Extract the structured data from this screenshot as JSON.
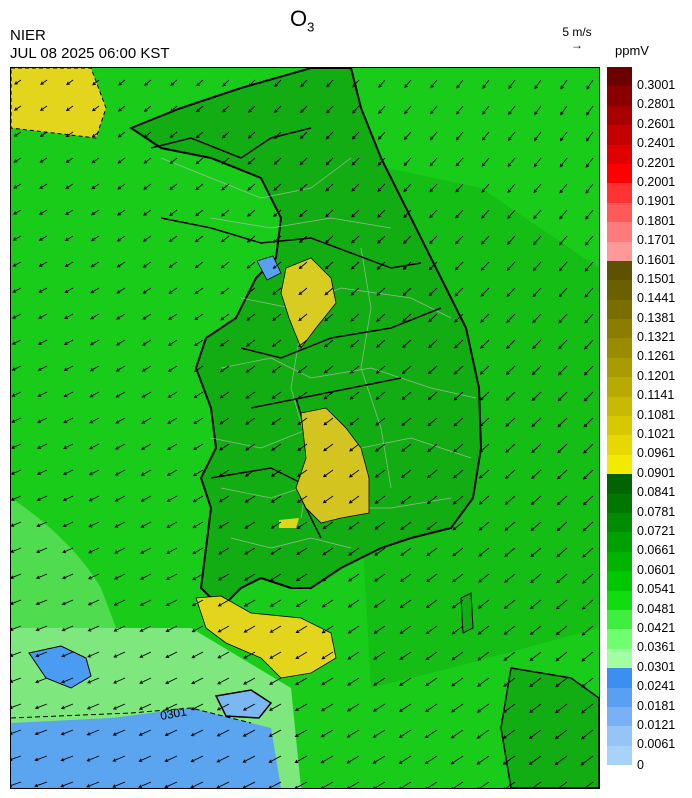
{
  "header": {
    "title_main": "O",
    "title_sub": "3",
    "agency": "NIER",
    "datetime": "JUL 08 2025 06:00 KST",
    "wind_reference": "5 m/s",
    "wind_reference_arrow": "→",
    "unit": "ppmV"
  },
  "map": {
    "contour_label": "0301",
    "background_color": "#11c911",
    "land_color": "#12b012",
    "high_ozone_color": "#e2d51c",
    "low_ozone_color": "#4a9cf2",
    "mid_low_color": "#7ee87e"
  },
  "legend": [
    {
      "label": "0.3001",
      "color": "#6b0000"
    },
    {
      "label": "0.2801",
      "color": "#8a0000"
    },
    {
      "label": "0.2601",
      "color": "#a80000"
    },
    {
      "label": "0.2401",
      "color": "#c40000"
    },
    {
      "label": "0.2201",
      "color": "#e00000"
    },
    {
      "label": "0.2001",
      "color": "#ff0000"
    },
    {
      "label": "0.1901",
      "color": "#ff3333"
    },
    {
      "label": "0.1801",
      "color": "#ff5a5a"
    },
    {
      "label": "0.1701",
      "color": "#ff7a7a"
    },
    {
      "label": "0.1601",
      "color": "#ff9898"
    },
    {
      "label": "0.1501",
      "color": "#5c5200"
    },
    {
      "label": "0.1441",
      "color": "#6b6000"
    },
    {
      "label": "0.1381",
      "color": "#7a6e00"
    },
    {
      "label": "0.1321",
      "color": "#8a7d00"
    },
    {
      "label": "0.1261",
      "color": "#9a8c00"
    },
    {
      "label": "0.1201",
      "color": "#aa9b00"
    },
    {
      "label": "0.1141",
      "color": "#b9aa00"
    },
    {
      "label": "0.1081",
      "color": "#c8ba00"
    },
    {
      "label": "0.1021",
      "color": "#d6c900"
    },
    {
      "label": "0.0961",
      "color": "#e6d800"
    },
    {
      "label": "0.0901",
      "color": "#f2ea00"
    },
    {
      "label": "0.0841",
      "color": "#006400"
    },
    {
      "label": "0.0781",
      "color": "#007800"
    },
    {
      "label": "0.0721",
      "color": "#008c00"
    },
    {
      "label": "0.0661",
      "color": "#00a000"
    },
    {
      "label": "0.0601",
      "color": "#00b400"
    },
    {
      "label": "0.0541",
      "color": "#00c800"
    },
    {
      "label": "0.0481",
      "color": "#10dc10"
    },
    {
      "label": "0.0421",
      "color": "#40ee40"
    },
    {
      "label": "0.0361",
      "color": "#70ff70"
    },
    {
      "label": "0.0301",
      "color": "#a0ffa0"
    },
    {
      "label": "0.0241",
      "color": "#3c8ef0"
    },
    {
      "label": "0.0181",
      "color": "#5aa0f2"
    },
    {
      "label": "0.0121",
      "color": "#78b2f4"
    },
    {
      "label": "0.0061",
      "color": "#96c4f6"
    },
    {
      "label": "0",
      "color": "#a8d2f8"
    }
  ]
}
